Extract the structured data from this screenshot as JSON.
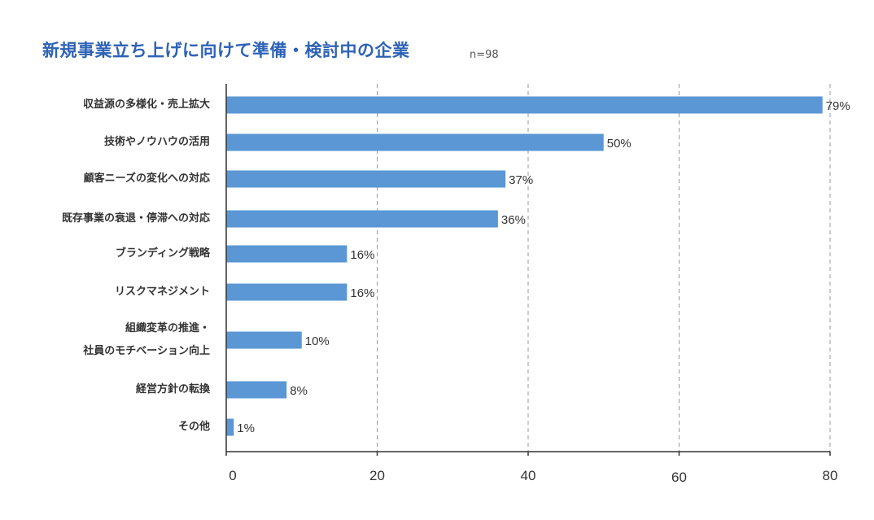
{
  "header": {
    "title": "新規事業立ち上げに向けて準備・検討中の企業",
    "sample": "n=98"
  },
  "colors": {
    "bar": "#5a97d4",
    "title": "#2e62b5",
    "axis": "#333333",
    "grid": "#999999"
  },
  "chart_data": {
    "type": "bar",
    "orientation": "horizontal",
    "title": "新規事業立ち上げに向けて準備・検討中の企業",
    "subtitle": "n=98",
    "categories": [
      "収益源の多様化・売上拡大",
      "技術やノウハウの活用",
      "顧客ニーズの変化への対応",
      "既存事業の衰退・停滞への対応",
      "ブランディング戦略",
      "リスクマネジメント",
      "組織変革の推進・\n社員のモチベーション向上",
      "経営方針の転換",
      "その他"
    ],
    "values": [
      79,
      50,
      37,
      36,
      16,
      16,
      10,
      8,
      1
    ],
    "value_labels": [
      "79%",
      "50%",
      "37%",
      "36%",
      "16%",
      "16%",
      "10%",
      "8%",
      "1%"
    ],
    "xlim": [
      0,
      80
    ],
    "xticks": [
      0,
      20,
      40,
      60,
      80
    ],
    "xtick_labels": [
      "0",
      "20",
      "40",
      "60",
      "80"
    ],
    "grid": "vertical-dashed",
    "xlabel": "",
    "ylabel": ""
  }
}
